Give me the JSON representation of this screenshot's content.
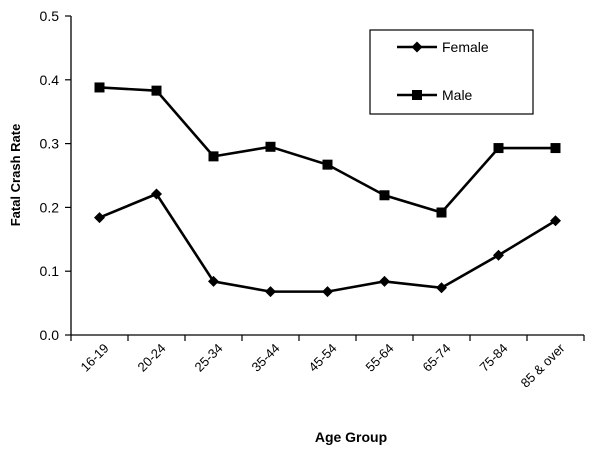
{
  "chart_data": {
    "type": "line",
    "title": "",
    "xlabel": "Age Group",
    "ylabel": "Fatal Crash Rate",
    "ylim": [
      0.0,
      0.5
    ],
    "yticks": [
      "0.0",
      "0.1",
      "0.2",
      "0.3",
      "0.4",
      "0.5"
    ],
    "ytick_values": [
      0.0,
      0.1,
      0.2,
      0.3,
      0.4,
      0.5
    ],
    "categories": [
      "16-19",
      "20-24",
      "25-34",
      "35-44",
      "45-54",
      "55-64",
      "65-74",
      "75-84",
      "85 & over"
    ],
    "grid": false,
    "legend_position": "top-right",
    "series": [
      {
        "name": "Female",
        "marker": "diamond",
        "color": "#000000",
        "values": [
          0.184,
          0.221,
          0.084,
          0.068,
          0.068,
          0.084,
          0.074,
          0.125,
          0.179
        ]
      },
      {
        "name": "Male",
        "marker": "square",
        "color": "#000000",
        "values": [
          0.388,
          0.383,
          0.28,
          0.295,
          0.267,
          0.219,
          0.192,
          0.293,
          0.293
        ]
      }
    ]
  }
}
